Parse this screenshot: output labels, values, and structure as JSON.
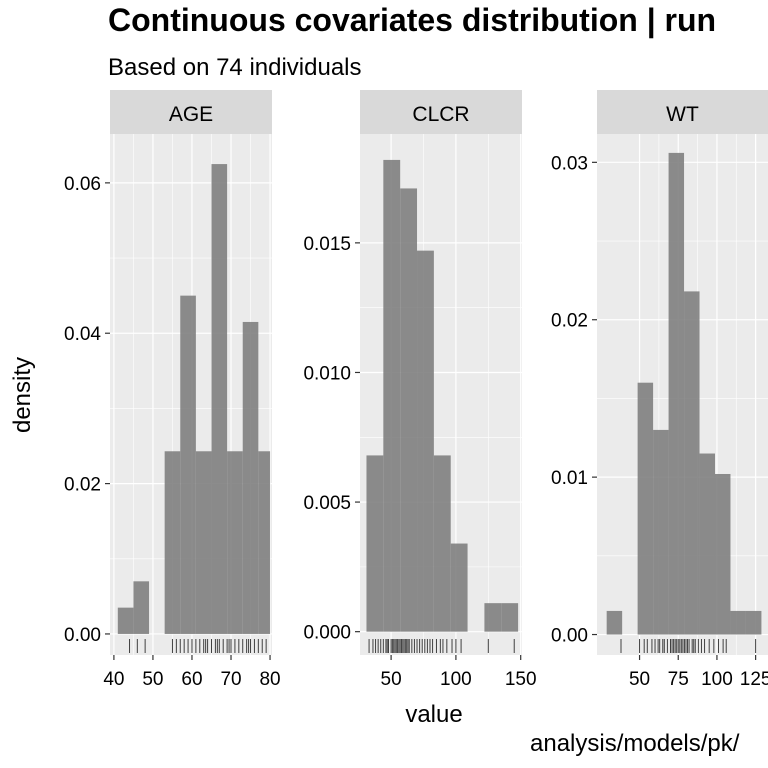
{
  "title": "Continuous covariates distribution | run",
  "subtitle": "Based on 74 individuals",
  "caption": "analysis/models/pk/",
  "xlabel": "value",
  "ylabel": "density",
  "colors": {
    "panel_bg": "#ebebeb",
    "strip_bg": "#d9d9d9",
    "bar": "#808080",
    "grid": "#ffffff",
    "text": "#000000"
  },
  "chart_data": [
    {
      "type": "bar",
      "panel": "AGE",
      "bins": [
        {
          "x0": 41,
          "x1": 45,
          "density": 0.0035
        },
        {
          "x0": 45,
          "x1": 49,
          "density": 0.007
        },
        {
          "x0": 53,
          "x1": 57,
          "density": 0.0243
        },
        {
          "x0": 57,
          "x1": 61,
          "density": 0.045
        },
        {
          "x0": 61,
          "x1": 65,
          "density": 0.0243
        },
        {
          "x0": 65,
          "x1": 69,
          "density": 0.0625
        },
        {
          "x0": 69,
          "x1": 73,
          "density": 0.0243
        },
        {
          "x0": 73,
          "x1": 77,
          "density": 0.0415
        },
        {
          "x0": 77,
          "x1": 80,
          "density": 0.0243
        }
      ],
      "rug": [
        44,
        46,
        48,
        55,
        56,
        57,
        58,
        59,
        60,
        61,
        62,
        63,
        63.5,
        64,
        65,
        66,
        66.5,
        67,
        68,
        69,
        69.5,
        70,
        71,
        72,
        73,
        74,
        74.5,
        75,
        76,
        77,
        78,
        79
      ],
      "xlim": [
        39,
        80.5
      ],
      "ylim": [
        -0.0028,
        0.0665
      ],
      "xticks": [
        40,
        50,
        60,
        70,
        80
      ],
      "yticks": [
        0,
        0.02,
        0.04,
        0.06
      ],
      "ytick_labels": [
        "0.00",
        "0.02",
        "0.04",
        "0.06"
      ]
    },
    {
      "type": "bar",
      "panel": "CLCR",
      "bins": [
        {
          "x0": 31,
          "x1": 44,
          "density": 0.0068
        },
        {
          "x0": 44,
          "x1": 57,
          "density": 0.0182
        },
        {
          "x0": 57,
          "x1": 70,
          "density": 0.0171
        },
        {
          "x0": 70,
          "x1": 83,
          "density": 0.0147
        },
        {
          "x0": 83,
          "x1": 96,
          "density": 0.0068
        },
        {
          "x0": 96,
          "x1": 109,
          "density": 0.0034
        },
        {
          "x0": 122,
          "x1": 135,
          "density": 0.0011
        },
        {
          "x0": 135,
          "x1": 148,
          "density": 0.0011
        }
      ],
      "rug": [
        33,
        36,
        38,
        40,
        42,
        44,
        46,
        47,
        48,
        50,
        51,
        52,
        53,
        54,
        55,
        56,
        57,
        58,
        59,
        60,
        61,
        62,
        63,
        64,
        66,
        68,
        70,
        72,
        74,
        76,
        78,
        80,
        82,
        85,
        88,
        90,
        93,
        97,
        100,
        104,
        125,
        145
      ],
      "xlim": [
        26,
        151
      ],
      "ylim": [
        -0.0009,
        0.0192
      ],
      "xticks": [
        50,
        100,
        150
      ],
      "yticks": [
        0,
        0.005,
        0.01,
        0.015
      ],
      "ytick_labels": [
        "0.000",
        "0.005",
        "0.010",
        "0.015"
      ]
    },
    {
      "type": "bar",
      "panel": "WT",
      "bins": [
        {
          "x0": 28.75,
          "x1": 38.75,
          "density": 0.0015
        },
        {
          "x0": 48.75,
          "x1": 58.75,
          "density": 0.016
        },
        {
          "x0": 58.75,
          "x1": 68.75,
          "density": 0.013
        },
        {
          "x0": 68.75,
          "x1": 78.75,
          "density": 0.0306
        },
        {
          "x0": 78.75,
          "x1": 88.75,
          "density": 0.0218
        },
        {
          "x0": 88.75,
          "x1": 98.75,
          "density": 0.0115
        },
        {
          "x0": 98.75,
          "x1": 108.75,
          "density": 0.0102
        },
        {
          "x0": 108.75,
          "x1": 118.75,
          "density": 0.0015
        },
        {
          "x0": 118.75,
          "x1": 128.75,
          "density": 0.0015
        }
      ],
      "rug": [
        38,
        50,
        53,
        55,
        58,
        60,
        62,
        63,
        65,
        66,
        68,
        70,
        71,
        72,
        73,
        74,
        75,
        76,
        77,
        78,
        79,
        80,
        81,
        82,
        84,
        85,
        86,
        88,
        90,
        92,
        95,
        98,
        101,
        104,
        106,
        125
      ],
      "xlim": [
        22.5,
        133
      ],
      "ylim": [
        -0.0013,
        0.0318
      ],
      "xticks": [
        50,
        75,
        100,
        125
      ],
      "yticks": [
        0,
        0.01,
        0.02,
        0.03
      ],
      "ytick_labels": [
        "0.00",
        "0.01",
        "0.02",
        "0.03"
      ]
    }
  ]
}
